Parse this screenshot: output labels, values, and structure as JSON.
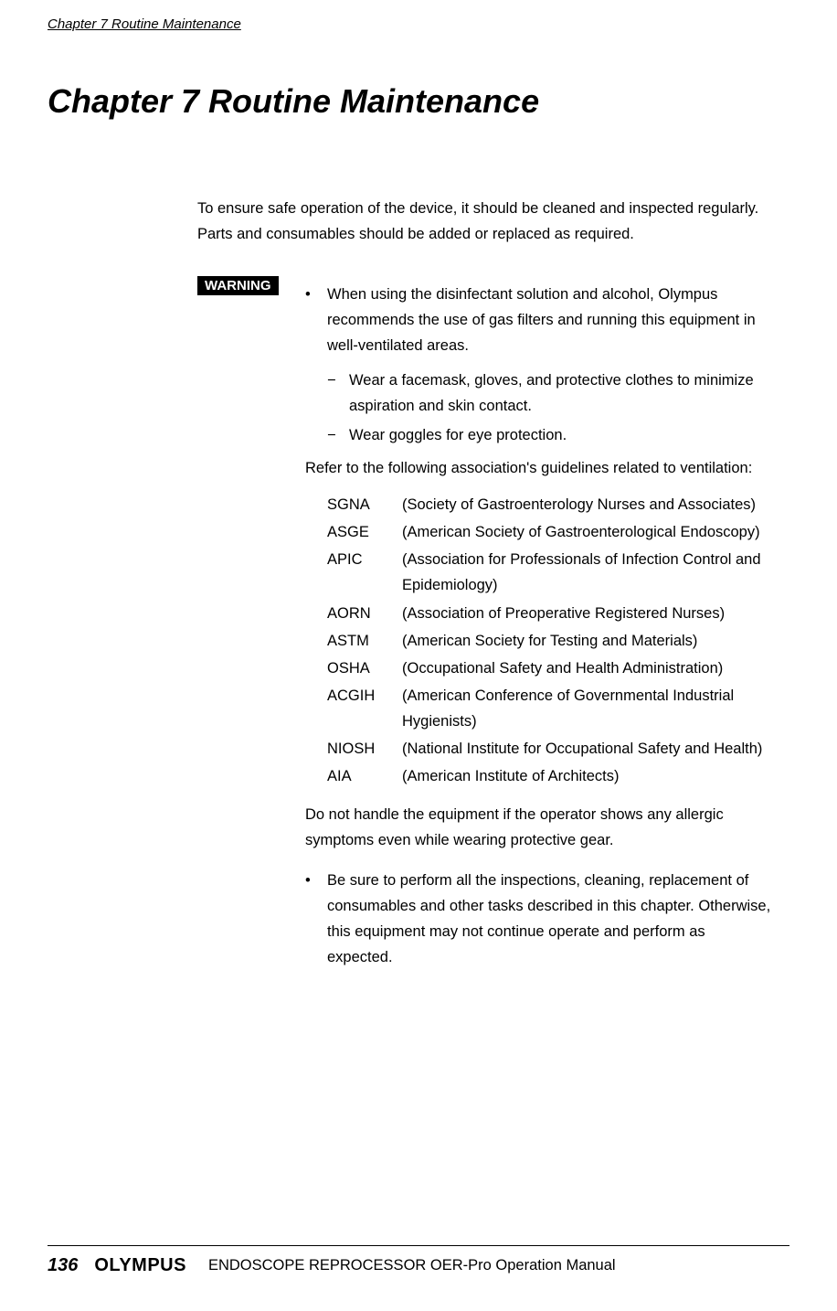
{
  "header": {
    "running_title": "Chapter 7  Routine Maintenance"
  },
  "chapter_title": "Chapter 7    Routine Maintenance",
  "intro": "To ensure safe operation of the device, it should be cleaned and inspected regularly. Parts and consumables should be added or replaced as required.",
  "warning_label": "WARNING",
  "bullet1": "When using the disinfectant solution and alcohol, Olympus recommends the use of gas filters and running this equipment in well-ventilated areas.",
  "sub_bullet1": "Wear a facemask, gloves, and protective clothes to minimize aspiration and skin contact.",
  "sub_bullet2": "Wear goggles for eye protection.",
  "refer_text": "Refer to the following association's guidelines related to ventilation:",
  "associations": [
    {
      "abbr": "SGNA",
      "full": "(Society of Gastroenterology Nurses and Associates)"
    },
    {
      "abbr": "ASGE",
      "full": "(American Society of Gastroenterological Endoscopy)"
    },
    {
      "abbr": "APIC",
      "full": "(Association for Professionals of Infection Control and Epidemiology)"
    },
    {
      "abbr": "AORN",
      "full": "(Association of Preoperative Registered Nurses)"
    },
    {
      "abbr": "ASTM",
      "full": "(American Society for Testing and Materials)"
    },
    {
      "abbr": "OSHA",
      "full": "(Occupational Safety and Health Administration)"
    },
    {
      "abbr": "ACGIH",
      "full": "(American Conference of Governmental Industrial Hygienists)"
    },
    {
      "abbr": "NIOSH",
      "full": "(National Institute for Occupational Safety and Health)"
    },
    {
      "abbr": "AIA",
      "full": "(American Institute of Architects)"
    }
  ],
  "do_not_handle": "Do not handle the equipment if the operator shows any allergic symptoms even while wearing protective gear.",
  "bullet2": "Be sure to perform all the inspections, cleaning, replacement of consumables and other tasks described in this chapter. Otherwise, this equipment may not continue operate and perform as expected.",
  "footer": {
    "page_number": "136",
    "brand": "OLYMPUS",
    "manual_title": "ENDOSCOPE REPROCESSOR OER-Pro Operation Manual"
  }
}
